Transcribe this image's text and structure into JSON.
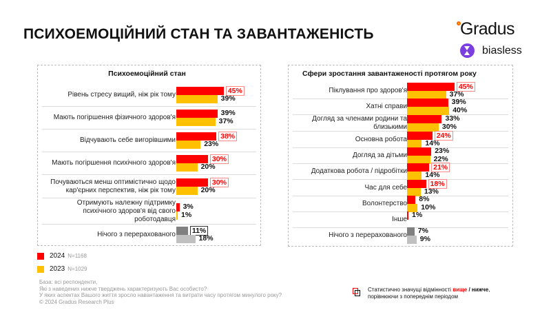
{
  "title": "ПСИХОЕМОЦІЙНИЙ СТАН ТА ЗАВАНТАЖЕНІСТЬ",
  "logo": {
    "brand": "Gradus",
    "sub": "biasless"
  },
  "colors": {
    "y2024": "#ff0000",
    "y2023": "#ffc000",
    "none2024": "#808080",
    "none2023": "#c0c0c0"
  },
  "left": {
    "title": "Психоемоційний стан",
    "rows": [
      {
        "label": "Рівень стресу вищий, ніж рік тому",
        "v2024": 45,
        "v2023": 39,
        "v2024_text": "45%",
        "v2023_text": "39%",
        "sig": "up"
      },
      {
        "label": "Мають погіршення фізичного здоров'я",
        "v2024": 39,
        "v2023": 37,
        "v2024_text": "39%",
        "v2023_text": "37%",
        "sig": ""
      },
      {
        "label": "Відчувають себе вигорівшими",
        "v2024": 38,
        "v2023": 23,
        "v2024_text": "38%",
        "v2023_text": "23%",
        "sig": "up"
      },
      {
        "label": "Мають погіршення психічного здоров'я",
        "v2024": 30,
        "v2023": 20,
        "v2024_text": "30%",
        "v2023_text": "20%",
        "sig": "up"
      },
      {
        "label": "Почуваються менш оптимістично щодо кар'єрних перспектив, ніж рік тому",
        "v2024": 30,
        "v2023": 20,
        "v2024_text": "30%",
        "v2023_text": "20%",
        "sig": "up"
      },
      {
        "label": "Отримують належну підтримку психічного здоров'я від свого роботодавця",
        "v2024": 3,
        "v2023": 1,
        "v2024_text": "3%",
        "v2023_text": "1%",
        "sig": ""
      },
      {
        "label": "Нічого з перерахованого",
        "v2024": 11,
        "v2023": 18,
        "v2024_text": "11%",
        "v2023_text": "18%",
        "sig": "down",
        "none": true
      }
    ]
  },
  "right": {
    "title": "Сфери зростання завантаженості протягом року",
    "rows": [
      {
        "label": "Піклування про здоров'я",
        "v2024": 45,
        "v2023": 37,
        "v2024_text": "45%",
        "v2023_text": "37%",
        "sig": "up"
      },
      {
        "label": "Хатні справи",
        "v2024": 39,
        "v2023": 40,
        "v2024_text": "39%",
        "v2023_text": "40%",
        "sig": ""
      },
      {
        "label": "Догляд за членами родини та близькими",
        "v2024": 33,
        "v2023": 30,
        "v2024_text": "33%",
        "v2023_text": "30%",
        "sig": ""
      },
      {
        "label": "Основна робота",
        "v2024": 24,
        "v2023": 14,
        "v2024_text": "24%",
        "v2023_text": "14%",
        "sig": "up"
      },
      {
        "label": "Догляд за дітьми",
        "v2024": 23,
        "v2023": 22,
        "v2024_text": "23%",
        "v2023_text": "22%",
        "sig": ""
      },
      {
        "label": "Додаткова робота / підробітки",
        "v2024": 21,
        "v2023": 14,
        "v2024_text": "21%",
        "v2023_text": "14%",
        "sig": "up"
      },
      {
        "label": "Час для себе",
        "v2024": 18,
        "v2023": 13,
        "v2024_text": "18%",
        "v2023_text": "13%",
        "sig": "up"
      },
      {
        "label": "Волонтерство",
        "v2024": 8,
        "v2023": 10,
        "v2024_text": "8%",
        "v2023_text": "10%",
        "sig": ""
      },
      {
        "label": "Інше",
        "v2024": 1,
        "v2023": null,
        "v2024_text": "1%",
        "v2023_text": null,
        "sig": ""
      },
      {
        "label": "Нічого з перерахованого",
        "v2024": 7,
        "v2023": 9,
        "v2024_text": "7%",
        "v2023_text": "9%",
        "sig": "",
        "none": true
      }
    ]
  },
  "legend": [
    {
      "year": "2024",
      "n": "N=1168"
    },
    {
      "year": "2023",
      "n": "N=1029"
    }
  ],
  "base": [
    "База: всі респонденти,",
    "Які з наведених нижче тверджень характеризують Вас особисто?",
    "У яких аспектах Вашого життя зросло навантаження та витрати часу протягом минулого року?",
    "© 2024 Gradus Research Plus"
  ],
  "note": {
    "prefix": "Статистично значущі відмінності ",
    "up": "вище",
    "sep": " / ",
    "down": "нижче",
    "suffix": ",",
    "line2": "порівнюючи з попереднім періодом"
  }
}
